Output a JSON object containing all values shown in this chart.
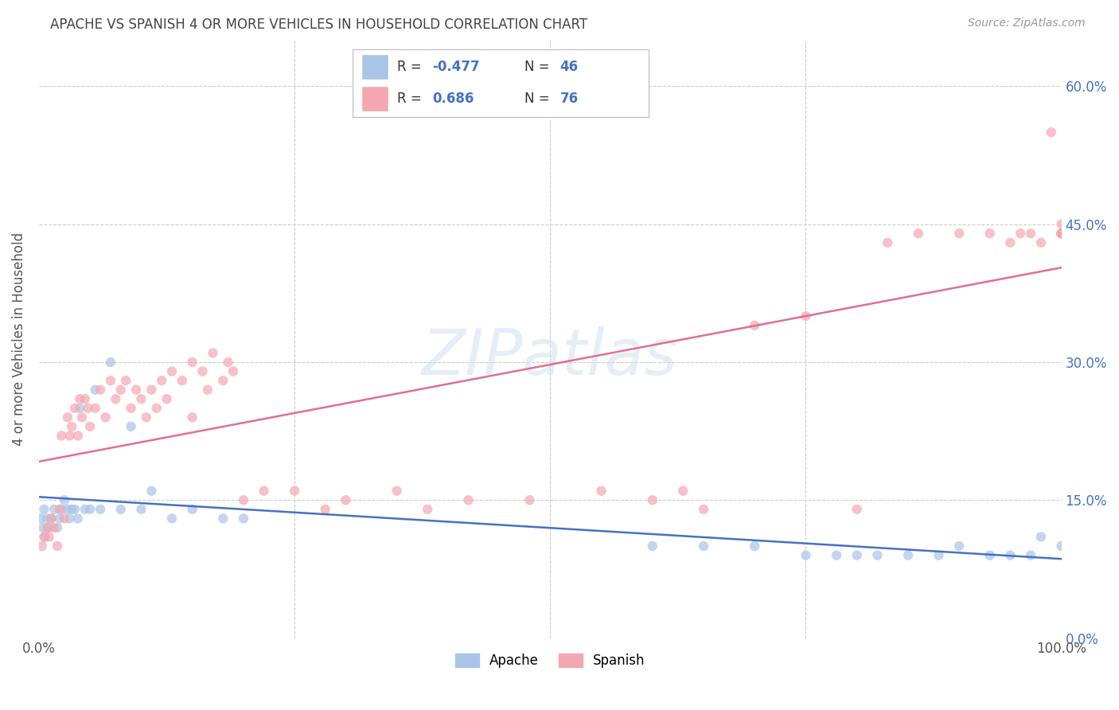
{
  "title": "APACHE VS SPANISH 4 OR MORE VEHICLES IN HOUSEHOLD CORRELATION CHART",
  "source": "Source: ZipAtlas.com",
  "ylabel": "4 or more Vehicles in Household",
  "watermark": "ZIPatlas",
  "apache_R": -0.477,
  "apache_N": 46,
  "spanish_R": 0.686,
  "spanish_N": 76,
  "apache_dot_color": "#aac4e8",
  "apache_line_color": "#4472c4",
  "spanish_dot_color": "#f4a7b0",
  "spanish_line_color": "#e07090",
  "background_color": "#ffffff",
  "grid_color": "#cccccc",
  "title_color": "#444444",
  "right_tick_color": "#4472c4",
  "dot_size": 80,
  "dot_alpha": 0.7,
  "line_width": 1.8,
  "apache_x": [
    0.2,
    0.4,
    0.5,
    0.6,
    0.8,
    1.0,
    1.2,
    1.5,
    1.8,
    2.0,
    2.2,
    2.5,
    2.8,
    3.0,
    3.2,
    3.5,
    3.8,
    4.0,
    4.5,
    5.0,
    5.5,
    6.0,
    7.0,
    8.0,
    9.0,
    10.0,
    11.0,
    13.0,
    15.0,
    18.0,
    20.0,
    60.0,
    65.0,
    70.0,
    75.0,
    78.0,
    80.0,
    82.0,
    85.0,
    88.0,
    90.0,
    93.0,
    95.0,
    97.0,
    98.0,
    100.0
  ],
  "apache_y": [
    0.13,
    0.12,
    0.14,
    0.11,
    0.13,
    0.12,
    0.13,
    0.14,
    0.12,
    0.13,
    0.14,
    0.15,
    0.14,
    0.13,
    0.14,
    0.14,
    0.13,
    0.25,
    0.14,
    0.14,
    0.27,
    0.14,
    0.3,
    0.14,
    0.23,
    0.14,
    0.16,
    0.13,
    0.14,
    0.13,
    0.13,
    0.1,
    0.1,
    0.1,
    0.09,
    0.09,
    0.09,
    0.09,
    0.09,
    0.09,
    0.1,
    0.09,
    0.09,
    0.09,
    0.11,
    0.1
  ],
  "spanish_x": [
    0.3,
    0.5,
    0.8,
    1.0,
    1.2,
    1.5,
    1.8,
    2.0,
    2.2,
    2.5,
    2.8,
    3.0,
    3.2,
    3.5,
    3.8,
    4.0,
    4.2,
    4.5,
    4.8,
    5.0,
    5.5,
    6.0,
    6.5,
    7.0,
    7.5,
    8.0,
    8.5,
    9.0,
    9.5,
    10.0,
    10.5,
    11.0,
    11.5,
    12.0,
    12.5,
    13.0,
    14.0,
    15.0,
    15.0,
    16.0,
    16.5,
    17.0,
    18.0,
    18.5,
    19.0,
    20.0,
    22.0,
    25.0,
    28.0,
    30.0,
    35.0,
    38.0,
    42.0,
    48.0,
    55.0,
    60.0,
    63.0,
    65.0,
    70.0,
    75.0,
    80.0,
    83.0,
    86.0,
    90.0,
    93.0,
    95.0,
    96.0,
    97.0,
    98.0,
    99.0,
    100.0,
    100.0,
    100.0,
    100.0,
    100.0,
    100.0
  ],
  "spanish_y": [
    0.1,
    0.11,
    0.12,
    0.11,
    0.13,
    0.12,
    0.1,
    0.14,
    0.22,
    0.13,
    0.24,
    0.22,
    0.23,
    0.25,
    0.22,
    0.26,
    0.24,
    0.26,
    0.25,
    0.23,
    0.25,
    0.27,
    0.24,
    0.28,
    0.26,
    0.27,
    0.28,
    0.25,
    0.27,
    0.26,
    0.24,
    0.27,
    0.25,
    0.28,
    0.26,
    0.29,
    0.28,
    0.3,
    0.24,
    0.29,
    0.27,
    0.31,
    0.28,
    0.3,
    0.29,
    0.15,
    0.16,
    0.16,
    0.14,
    0.15,
    0.16,
    0.14,
    0.15,
    0.15,
    0.16,
    0.15,
    0.16,
    0.14,
    0.34,
    0.35,
    0.14,
    0.43,
    0.44,
    0.44,
    0.44,
    0.43,
    0.44,
    0.44,
    0.43,
    0.55,
    0.44,
    0.44,
    0.44,
    0.44,
    0.44,
    0.45
  ],
  "yticks": [
    0.0,
    0.15,
    0.3,
    0.45,
    0.6
  ],
  "ytick_labels": [
    "0.0%",
    "15.0%",
    "30.0%",
    "45.0%",
    "60.0%"
  ]
}
